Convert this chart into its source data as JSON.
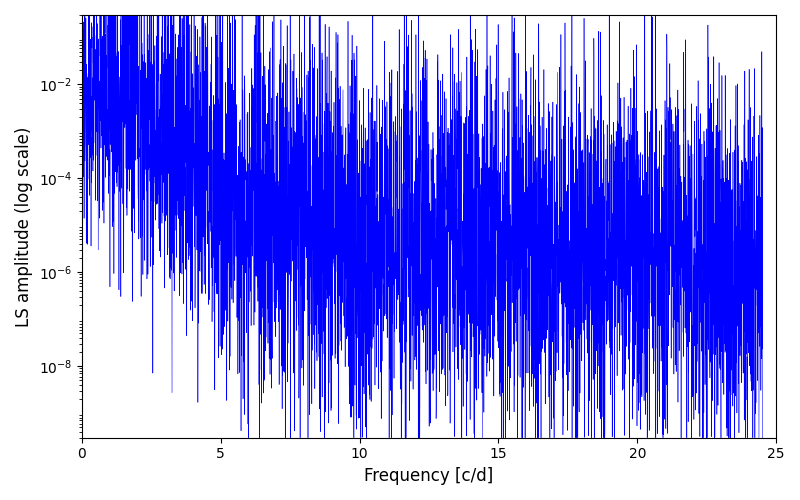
{
  "title": "",
  "xlabel": "Frequency [c/d]",
  "ylabel": "LS amplitude (log scale)",
  "line_color": "#0000ff",
  "xlim": [
    0,
    25
  ],
  "ylim": [
    3e-10,
    0.3
  ],
  "yticks": [
    1e-08,
    1e-06,
    0.0001,
    0.01
  ],
  "xticks": [
    0,
    5,
    10,
    15,
    20,
    25
  ],
  "freq_max": 24.5,
  "n_points": 5000,
  "seed": 12345,
  "background_color": "#ffffff",
  "fig_width": 8.0,
  "fig_height": 5.0,
  "dpi": 100
}
